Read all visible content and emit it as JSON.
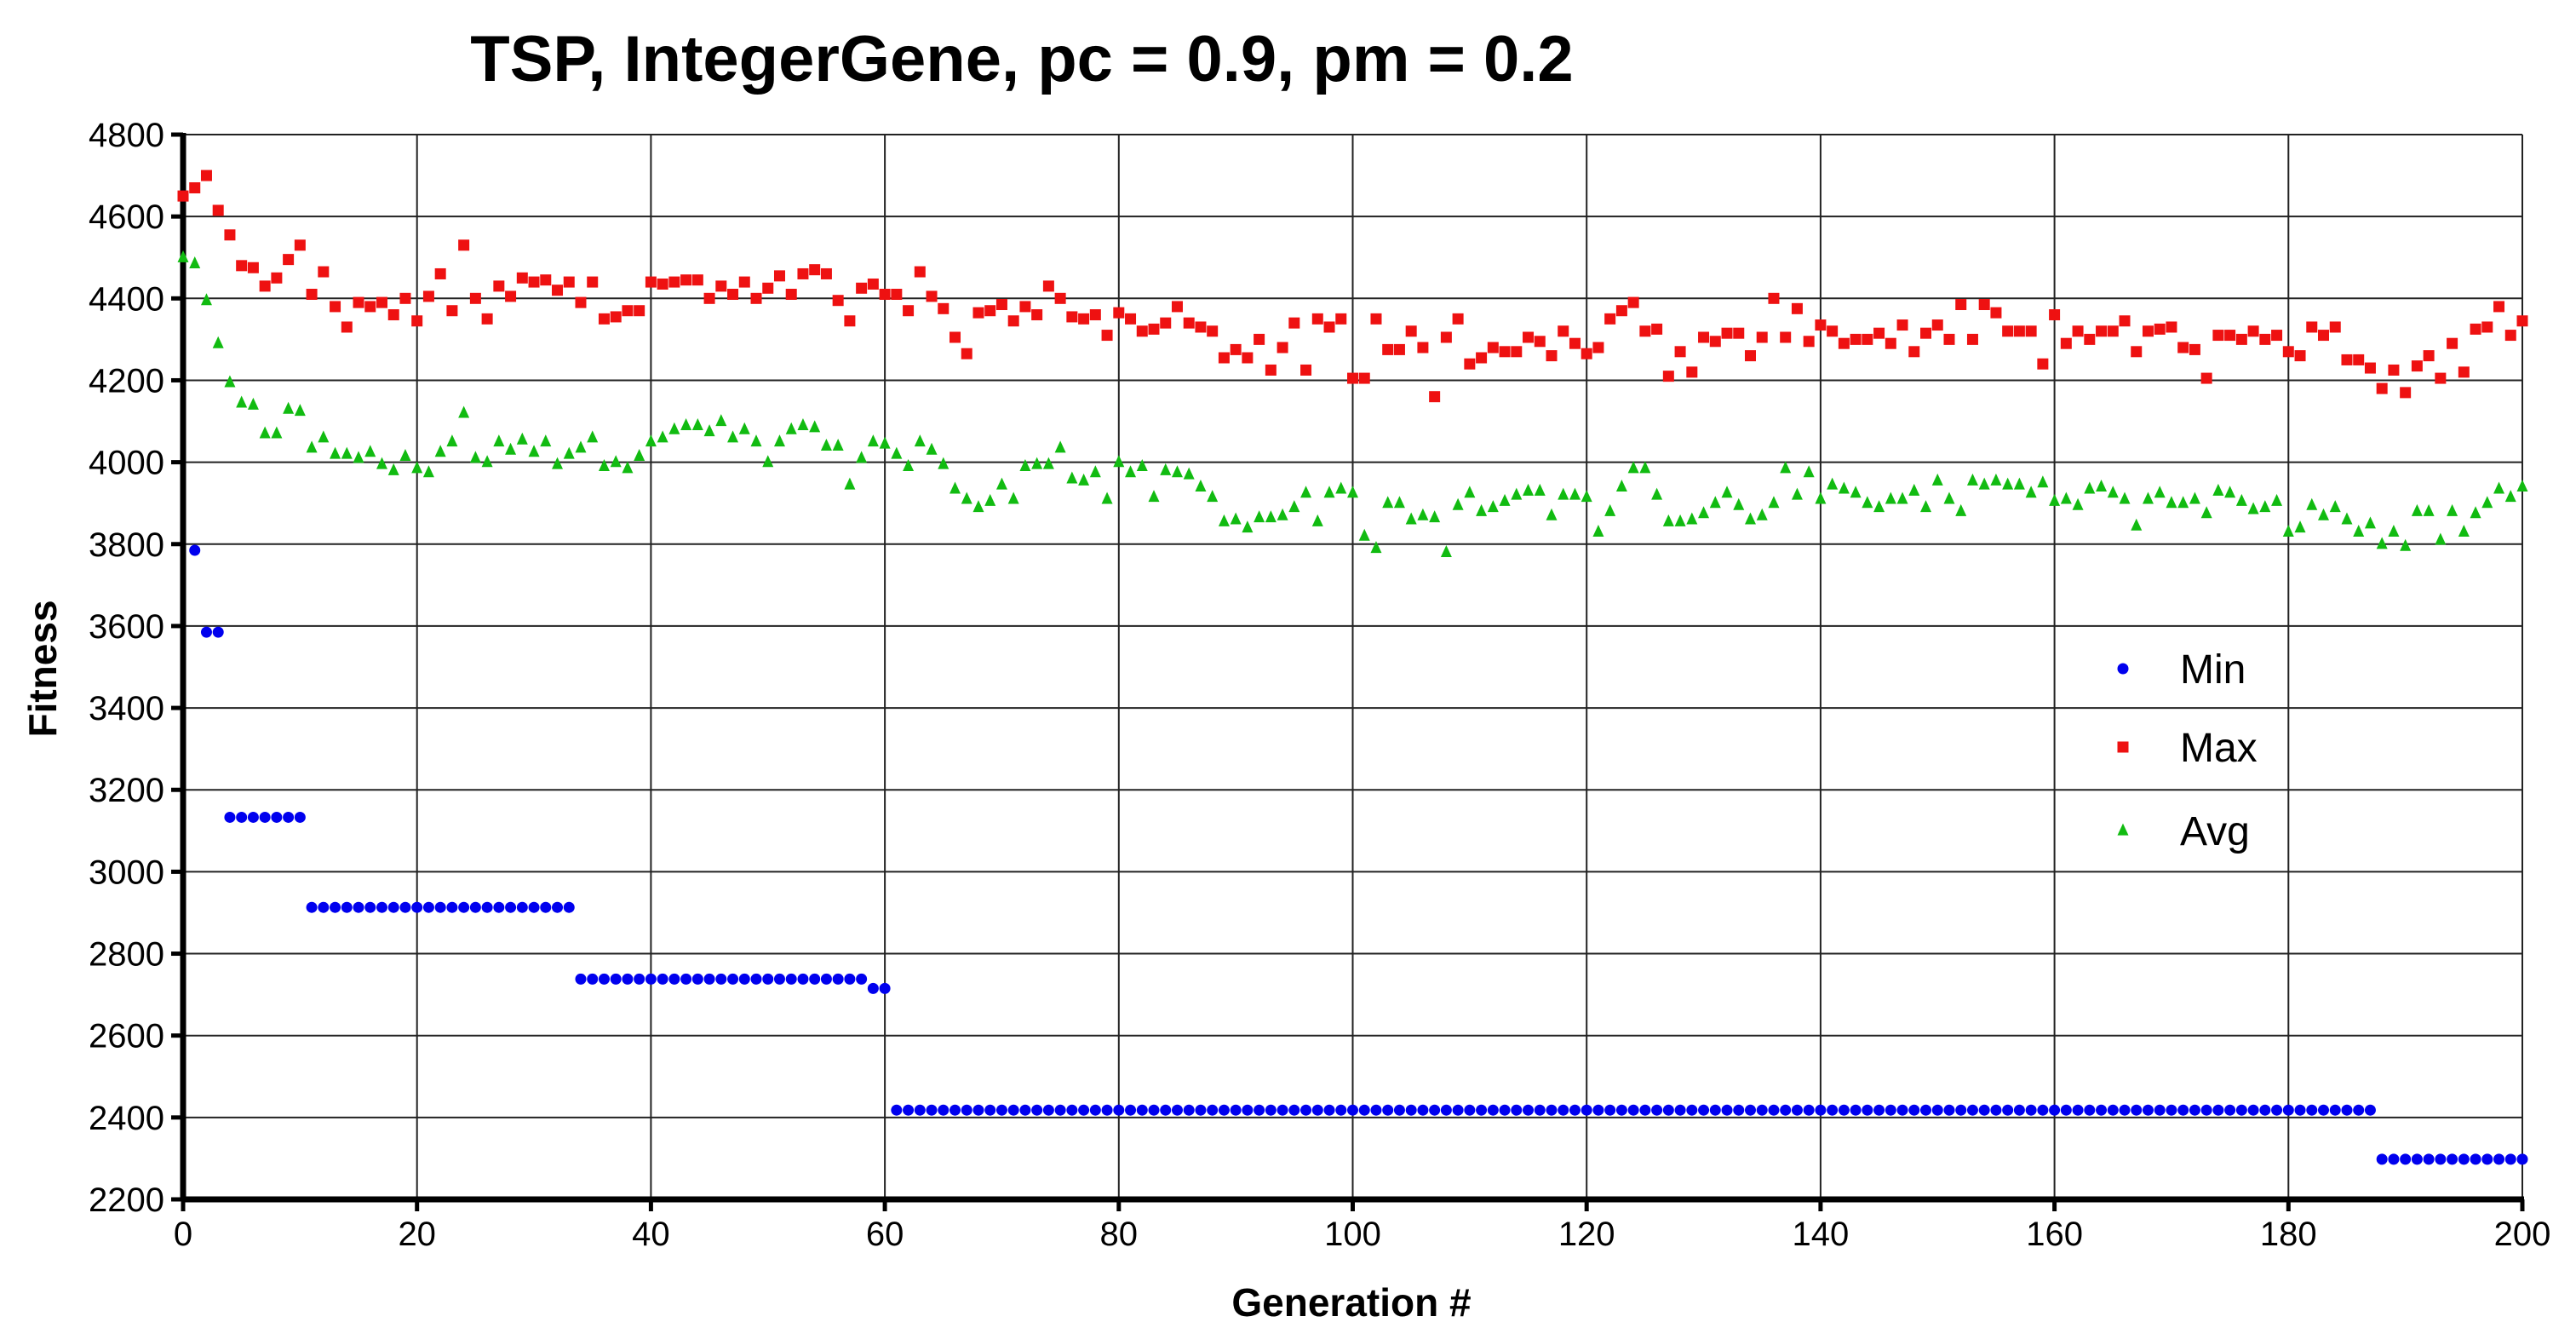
{
  "chart_data": {
    "type": "scatter",
    "title": "TSP, IntegerGene, pc = 0.9, pm = 0.2",
    "xlabel": "Generation #",
    "ylabel": "Fitness",
    "xlim": [
      0,
      200
    ],
    "ylim": [
      2200,
      4800
    ],
    "x_ticks": [
      0,
      20,
      40,
      60,
      80,
      100,
      120,
      140,
      160,
      180,
      200
    ],
    "y_ticks": [
      2200,
      2400,
      2600,
      2800,
      3000,
      3200,
      3400,
      3600,
      3800,
      4000,
      4200,
      4400,
      4600,
      4800
    ],
    "grid": true,
    "legend_position": "right",
    "series": [
      {
        "name": "Min",
        "color": "#0000ee",
        "marker": "circle",
        "segments": [
          {
            "x_start": 0,
            "x_end": 0,
            "y": 4650
          },
          {
            "x_start": 1,
            "x_end": 1,
            "y": 3785
          },
          {
            "x_start": 2,
            "x_end": 3,
            "y": 3585
          },
          {
            "x_start": 4,
            "x_end": 10,
            "y": 3133
          },
          {
            "x_start": 11,
            "x_end": 33,
            "y": 2913
          },
          {
            "x_start": 34,
            "x_end": 58,
            "y": 2738
          },
          {
            "x_start": 59,
            "x_end": 60,
            "y": 2715
          },
          {
            "x_start": 61,
            "x_end": 187,
            "y": 2418
          },
          {
            "x_start": 188,
            "x_end": 200,
            "y": 2298
          }
        ]
      },
      {
        "name": "Max",
        "color": "#ee1111",
        "marker": "square",
        "values": [
          4650,
          4670,
          4700,
          4615,
          4555,
          4480,
          4475,
          4430,
          4450,
          4495,
          4530,
          4410,
          4465,
          4380,
          4330,
          4390,
          4380,
          4390,
          4360,
          4400,
          4345,
          4405,
          4460,
          4370,
          4530,
          4400,
          4350,
          4430,
          4405,
          4450,
          4440,
          4445,
          4420,
          4440,
          4390,
          4440,
          4350,
          4355,
          4370,
          4370,
          4440,
          4435,
          4440,
          4445,
          4445,
          4400,
          4430,
          4410,
          4440,
          4400,
          4425,
          4455,
          4410,
          4460,
          4470,
          4460,
          4395,
          4345,
          4425,
          4435,
          4410,
          4410,
          4370,
          4465,
          4405,
          4375,
          4305,
          4265,
          4365,
          4370,
          4385,
          4345,
          4380,
          4360,
          4430,
          4400,
          4355,
          4350,
          4360,
          4310,
          4365,
          4350,
          4320,
          4325,
          4340,
          4380,
          4340,
          4330,
          4320,
          4255,
          4275,
          4255,
          4300,
          4225,
          4280,
          4340,
          4225,
          4350,
          4330,
          4350,
          4205,
          4205,
          4350,
          4275,
          4275,
          4320,
          4280,
          4160,
          4305,
          4350,
          4240,
          4255,
          4280,
          4270,
          4270,
          4305,
          4295,
          4260,
          4320,
          4290,
          4265,
          4280,
          4350,
          4370,
          4390,
          4320,
          4325,
          4210,
          4270,
          4220,
          4305,
          4295,
          4315,
          4315,
          4260,
          4305,
          4400,
          4305,
          4375,
          4295,
          4335,
          4320,
          4290,
          4300,
          4300,
          4315,
          4290,
          4335,
          4270,
          4315,
          4335,
          4300,
          4385,
          4300,
          4385,
          4365,
          4320,
          4320,
          4320,
          4240,
          4360,
          4290,
          4320,
          4300,
          4320,
          4320,
          4345,
          4270,
          4320,
          4325,
          4330,
          4280,
          4275,
          4205,
          4310,
          4310,
          4300,
          4320,
          4300,
          4310,
          4270,
          4260,
          4330,
          4310,
          4330,
          4250,
          4250,
          4230,
          4180,
          4225,
          4170,
          4235,
          4260,
          4205,
          4290,
          4220,
          4325,
          4330,
          4380,
          4310,
          4345
        ]
      },
      {
        "name": "Avg",
        "color": "#11bb11",
        "marker": "triangle",
        "values": [
          4500,
          4485,
          4395,
          4290,
          4195,
          4145,
          4140,
          4070,
          4070,
          4130,
          4125,
          4035,
          4060,
          4020,
          4020,
          4010,
          4025,
          3995,
          3980,
          4015,
          3985,
          3975,
          4025,
          4050,
          4120,
          4010,
          4000,
          4050,
          4030,
          4055,
          4025,
          4050,
          3995,
          4020,
          4035,
          4060,
          3990,
          4000,
          3985,
          4015,
          4050,
          4060,
          4080,
          4090,
          4090,
          4075,
          4100,
          4060,
          4080,
          4050,
          4000,
          4050,
          4080,
          4090,
          4085,
          4040,
          4040,
          3945,
          4010,
          4050,
          4045,
          4020,
          3990,
          4050,
          4030,
          3995,
          3935,
          3910,
          3890,
          3905,
          3945,
          3910,
          3990,
          3995,
          3995,
          4035,
          3960,
          3955,
          3975,
          3910,
          4000,
          3975,
          3990,
          3915,
          3980,
          3975,
          3970,
          3940,
          3915,
          3855,
          3860,
          3840,
          3865,
          3865,
          3870,
          3890,
          3925,
          3855,
          3925,
          3935,
          3925,
          3820,
          3790,
          3900,
          3900,
          3860,
          3870,
          3865,
          3780,
          3895,
          3925,
          3880,
          3890,
          3905,
          3920,
          3930,
          3930,
          3870,
          3920,
          3920,
          3915,
          3830,
          3880,
          3940,
          3985,
          3985,
          3920,
          3855,
          3855,
          3860,
          3875,
          3900,
          3925,
          3895,
          3860,
          3870,
          3900,
          3985,
          3920,
          3975,
          3910,
          3945,
          3935,
          3925,
          3900,
          3890,
          3910,
          3910,
          3930,
          3890,
          3955,
          3910,
          3880,
          3955,
          3945,
          3955,
          3945,
          3945,
          3925,
          3950,
          3905,
          3910,
          3895,
          3935,
          3940,
          3925,
          3910,
          3845,
          3910,
          3925,
          3900,
          3900,
          3910,
          3875,
          3930,
          3925,
          3905,
          3885,
          3890,
          3905,
          3830,
          3840,
          3895,
          3870,
          3890,
          3860,
          3830,
          3850,
          3800,
          3830,
          3795,
          3880,
          3880,
          3810,
          3880,
          3830,
          3875,
          3900,
          3935,
          3915,
          3940
        ]
      }
    ]
  }
}
